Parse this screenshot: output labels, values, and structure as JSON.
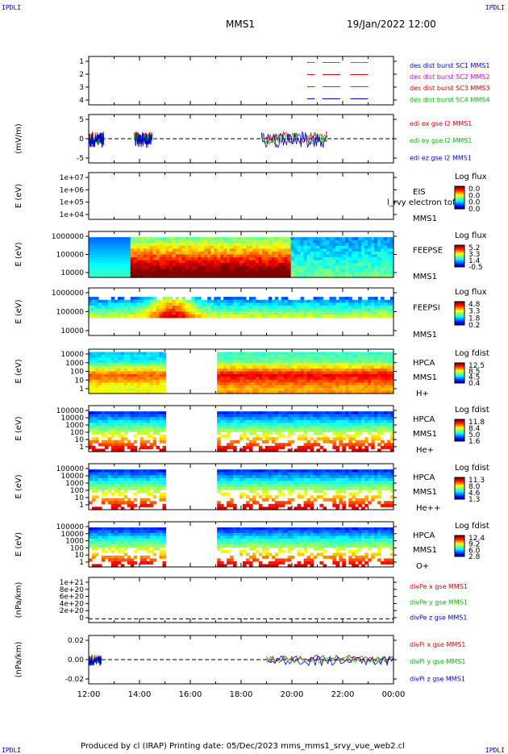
{
  "header": {
    "left_mark": "IPDLI",
    "right_mark": "IPDLI",
    "title": "MMS1",
    "datetime": "19/Jan/2022 12:00"
  },
  "footer": {
    "left_mark": "IPDLI",
    "right_mark": "IPDLI",
    "text": "Produced by cl (IRAP)   Printing date: 05/Dec/2023   mms_mms1_srvy_vue_web2.cl"
  },
  "colors": {
    "red": "#dd0000",
    "green": "#00bb00",
    "blue": "#0000cc",
    "magenta": "#dd00dd"
  },
  "chart_data": [
    {
      "type": "line",
      "name": "burst-status",
      "ylim": [
        0.5,
        4.5
      ],
      "yticks": [
        "1",
        "2",
        "3",
        "4"
      ],
      "legend": [
        {
          "text": "des dist burst SC1 MMS1",
          "color": "#0000cc"
        },
        {
          "text": "des dist burst SC2 MMS2",
          "color": "#dd00dd"
        },
        {
          "text": "des dist burst SC3 MMS3",
          "color": "#dd0000"
        },
        {
          "text": "des dist burst SC4 MMS4",
          "color": "#00bb00"
        }
      ],
      "series": [
        {
          "level": 4,
          "color": "#00bb00",
          "segments": [
            [
              20.6,
              20.9
            ],
            [
              21.2,
              21.9
            ],
            [
              22.3,
              23.0
            ]
          ]
        },
        {
          "level": 3,
          "color": "#dd0000",
          "segments": [
            [
              20.6,
              20.9
            ],
            [
              21.2,
              21.9
            ],
            [
              22.3,
              23.0
            ]
          ]
        },
        {
          "level": 2,
          "color": "#dd00dd",
          "segments": [
            [
              20.6,
              20.9
            ],
            [
              21.2,
              21.9
            ],
            [
              22.3,
              23.0
            ]
          ]
        },
        {
          "level": 1,
          "color": "#0000cc",
          "segments": [
            [
              20.6,
              20.9
            ],
            [
              21.2,
              21.9
            ],
            [
              22.3,
              23.0
            ]
          ]
        }
      ]
    },
    {
      "type": "line",
      "name": "electric-field",
      "ylabel": "(mV/m)",
      "ylim": [
        -9,
        9
      ],
      "yticks": [
        "5",
        "0",
        "-5"
      ],
      "legend": [
        {
          "text": "edi ex gse l2 MMS1",
          "color": "#dd0000"
        },
        {
          "text": "edi ey gse l2 MMS1",
          "color": "#00bb00"
        },
        {
          "text": "edi ez gse l2 MMS1",
          "color": "#0000cc"
        }
      ]
    },
    {
      "type": "heatmap",
      "name": "eis",
      "ylabel": "E (eV)",
      "yticks": [
        "1e+07",
        "1e+06",
        "1e+05",
        "1e+04"
      ],
      "labels": [
        "EIS",
        "MMS1"
      ],
      "overlay": "l_rvy electron tof",
      "cbar_title": "Log flux",
      "cbar_ticks": [
        "0.0",
        "0.0",
        "0.0",
        "0.0"
      ]
    },
    {
      "type": "heatmap",
      "name": "feeps-electron",
      "ylabel": "E (eV)",
      "yticks": [
        "1000000",
        "100000",
        "10000"
      ],
      "labels": [
        "FEEPSE",
        "MMS1"
      ],
      "cbar_title": "Log flux",
      "cbar_ticks": [
        "5.2",
        "3.3",
        "1.4",
        "-0.5"
      ]
    },
    {
      "type": "heatmap",
      "name": "feeps-ion",
      "ylabel": "E (eV)",
      "yticks": [
        "1000000",
        "100000",
        "10000"
      ],
      "labels": [
        "FEEPSI",
        "MMS1"
      ],
      "cbar_title": "Log flux",
      "cbar_ticks": [
        "4.8",
        "3.3",
        "1.8",
        "0.2"
      ]
    },
    {
      "type": "heatmap",
      "name": "hpca-h",
      "ylabel": "E (eV)",
      "yticks": [
        "10000",
        "1000",
        "100",
        "10",
        "1"
      ],
      "labels": [
        "HPCA",
        "MMS1",
        "H+"
      ],
      "cbar_title": "Log fdist",
      "cbar_ticks": [
        "12.5",
        "8.5",
        "4.5",
        "0.4"
      ],
      "gap": [
        15.05,
        17.1
      ]
    },
    {
      "type": "heatmap",
      "name": "hpca-he",
      "ylabel": "E (eV)",
      "yticks": [
        "100000",
        "10000",
        "1000",
        "100",
        "10",
        "1"
      ],
      "labels": [
        "HPCA",
        "MMS1",
        "He+"
      ],
      "cbar_title": "Log fdist",
      "cbar_ticks": [
        "11.8",
        "8.4",
        "5.0",
        "1.6"
      ],
      "gap": [
        15.05,
        17.1
      ]
    },
    {
      "type": "heatmap",
      "name": "hpca-he2",
      "ylabel": "E (eV)",
      "yticks": [
        "100000",
        "10000",
        "1000",
        "100",
        "10",
        "1"
      ],
      "labels": [
        "HPCA",
        "MMS1",
        "He++"
      ],
      "cbar_title": "Log fdist",
      "cbar_ticks": [
        "11.3",
        "8.0",
        "4.6",
        "1.3"
      ],
      "gap": [
        15.05,
        17.1
      ]
    },
    {
      "type": "heatmap",
      "name": "hpca-o",
      "ylabel": "E (eV)",
      "yticks": [
        "100000",
        "10000",
        "1000",
        "100",
        "10",
        "1"
      ],
      "labels": [
        "HPCA",
        "MMS1",
        "O+"
      ],
      "cbar_title": "Log fdist",
      "cbar_ticks": [
        "12.4",
        "9.2",
        "6.0",
        "2.8"
      ],
      "gap": [
        15.05,
        17.1
      ]
    },
    {
      "type": "line",
      "name": "div-pe",
      "ylabel": "(nPa/km)",
      "ylim": [
        -1e+20,
        1.1e+21
      ],
      "yticks": [
        "1e+21",
        "8e+20",
        "6e+20",
        "4e+20",
        "2e+20",
        "0"
      ],
      "legend": [
        {
          "text": "divPe x gse MMS1",
          "color": "#dd0000"
        },
        {
          "text": "divPe y gse MMS1",
          "color": "#00bb00"
        },
        {
          "text": "divPe z gse MMS1",
          "color": "#0000cc"
        }
      ]
    },
    {
      "type": "line",
      "name": "div-pi",
      "ylabel": "(nPa/km)",
      "ylim": [
        -0.03,
        0.03
      ],
      "yticks": [
        "0.02",
        "0.00",
        "-0.02"
      ],
      "legend": [
        {
          "text": "divPi x gse MMS1",
          "color": "#dd0000"
        },
        {
          "text": "divPi y gse MMS1",
          "color": "#00bb00"
        },
        {
          "text": "divPi z gse MMS1",
          "color": "#0000cc"
        }
      ]
    }
  ],
  "xaxis": {
    "range": [
      12,
      24
    ],
    "ticks": [
      "12:00",
      "14:00",
      "16:00",
      "18:00",
      "20:00",
      "22:00",
      "00:00"
    ]
  }
}
